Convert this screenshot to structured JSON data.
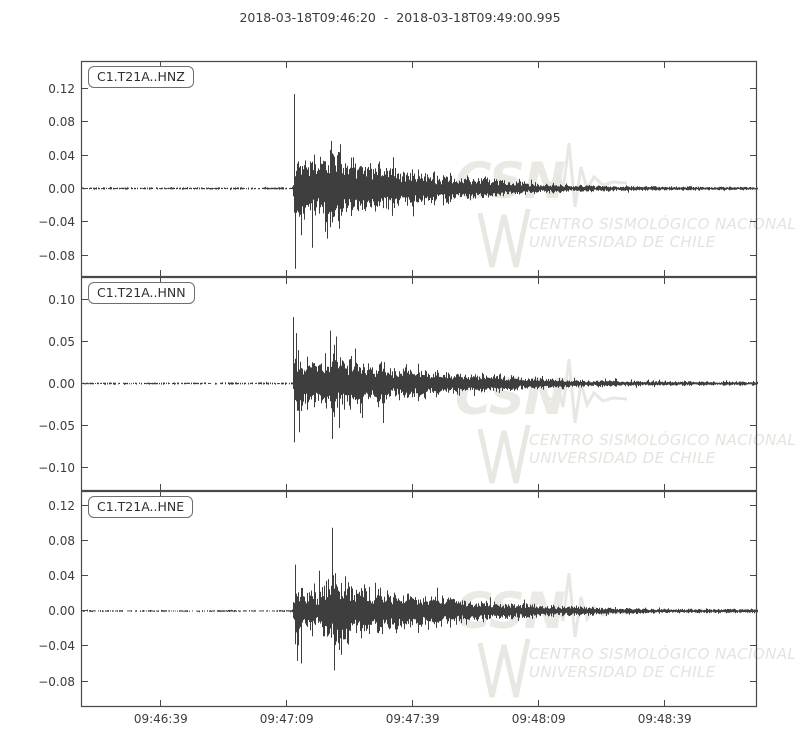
{
  "figure": {
    "background": "#ffffff",
    "frame_color": "#494949",
    "text_color": "#3c3c3c",
    "trace_color": "#3e3e3e",
    "watermark_color": "#e8e7e2"
  },
  "watermark": {
    "acronym": "CSN",
    "line1": "CENTRO SISMOLÓGICO NACIONAL",
    "line2": "UNIVERSIDAD DE CHILE"
  },
  "chart_data": {
    "type": "line",
    "title": "2018-03-18T09:46:20  -  2018-03-18T09:49:00.995",
    "x_start_label": "2018-03-18T09:46:20",
    "x_end_label": "2018-03-18T09:49:00.995",
    "duration_s": 160.995,
    "grid": false,
    "xticks": [
      {
        "t": 19,
        "label": "09:46:39"
      },
      {
        "t": 49,
        "label": "09:47:09"
      },
      {
        "t": 79,
        "label": "09:47:39"
      },
      {
        "t": 109,
        "label": "09:48:09"
      },
      {
        "t": 139,
        "label": "09:48:39"
      }
    ],
    "panels": [
      {
        "label": "C1.T21A..HNZ",
        "yticks": [
          0.12,
          0.08,
          0.04,
          0.0,
          -0.04,
          -0.08
        ],
        "ylim": [
          -0.106,
          0.1527
        ],
        "seed": 101,
        "envelope": [
          [
            0,
            0.0015
          ],
          [
            50.2,
            0.0015
          ],
          [
            50.5,
            0.01
          ],
          [
            50.9,
            0.048
          ],
          [
            51.5,
            0.05
          ],
          [
            52.5,
            0.044
          ],
          [
            54,
            0.038
          ],
          [
            55.5,
            0.036
          ],
          [
            57,
            0.042
          ],
          [
            59.5,
            0.05
          ],
          [
            61,
            0.048
          ],
          [
            63,
            0.042
          ],
          [
            66,
            0.038
          ],
          [
            70,
            0.033
          ],
          [
            75,
            0.028
          ],
          [
            80,
            0.024
          ],
          [
            85,
            0.02
          ],
          [
            90,
            0.016
          ],
          [
            95,
            0.013
          ],
          [
            100,
            0.011
          ],
          [
            105,
            0.009
          ],
          [
            110,
            0.007
          ],
          [
            115,
            0.0055
          ],
          [
            120,
            0.0045
          ],
          [
            125,
            0.0038
          ],
          [
            130,
            0.0032
          ],
          [
            140,
            0.0028
          ],
          [
            150,
            0.0025
          ],
          [
            161,
            0.0025
          ]
        ],
        "spikes_up": [
          [
            50.85,
            0.113
          ],
          [
            59.6,
            0.057
          ],
          [
            61.8,
            0.053
          ]
        ],
        "spikes_down": [
          [
            51.05,
            -0.096
          ],
          [
            52.4,
            -0.056
          ],
          [
            55.2,
            -0.071
          ],
          [
            58.6,
            -0.06
          ]
        ]
      },
      {
        "label": "C1.T21A..HNN",
        "yticks": [
          0.1,
          0.05,
          0.0,
          -0.05,
          -0.1
        ],
        "ylim": [
          -0.128,
          0.1268
        ],
        "seed": 202,
        "envelope": [
          [
            0,
            0.0015
          ],
          [
            50.2,
            0.0015
          ],
          [
            50.5,
            0.01
          ],
          [
            50.8,
            0.045
          ],
          [
            51.5,
            0.042
          ],
          [
            53,
            0.038
          ],
          [
            55,
            0.032
          ],
          [
            56.5,
            0.03
          ],
          [
            58,
            0.04
          ],
          [
            59.5,
            0.05
          ],
          [
            61,
            0.048
          ],
          [
            62.5,
            0.043
          ],
          [
            64,
            0.038
          ],
          [
            67,
            0.034
          ],
          [
            70,
            0.031
          ],
          [
            75,
            0.027
          ],
          [
            80,
            0.023
          ],
          [
            85,
            0.019
          ],
          [
            90,
            0.016
          ],
          [
            95,
            0.013
          ],
          [
            100,
            0.011
          ],
          [
            105,
            0.009
          ],
          [
            110,
            0.0075
          ],
          [
            115,
            0.006
          ],
          [
            120,
            0.005
          ],
          [
            130,
            0.004
          ],
          [
            140,
            0.0035
          ],
          [
            150,
            0.003
          ],
          [
            161,
            0.003
          ]
        ],
        "spikes_up": [
          [
            50.7,
            0.079
          ],
          [
            51.3,
            0.06
          ],
          [
            59.4,
            0.063
          ],
          [
            60.9,
            0.056
          ]
        ],
        "spikes_down": [
          [
            50.95,
            -0.07
          ],
          [
            52.1,
            -0.058
          ],
          [
            59.9,
            -0.066
          ],
          [
            61.6,
            -0.053
          ],
          [
            72.0,
            -0.047
          ]
        ]
      },
      {
        "label": "C1.T21A..HNE",
        "yticks": [
          0.12,
          0.08,
          0.04,
          0.0,
          -0.04,
          -0.08
        ],
        "ylim": [
          -0.1097,
          0.1371
        ],
        "seed": 303,
        "envelope": [
          [
            0,
            0.0012
          ],
          [
            50.2,
            0.0012
          ],
          [
            50.5,
            0.01
          ],
          [
            50.9,
            0.04
          ],
          [
            51.8,
            0.038
          ],
          [
            53,
            0.033
          ],
          [
            55,
            0.03
          ],
          [
            56.5,
            0.033
          ],
          [
            58.5,
            0.045
          ],
          [
            59.8,
            0.05
          ],
          [
            61,
            0.046
          ],
          [
            63,
            0.041
          ],
          [
            65,
            0.037
          ],
          [
            68,
            0.033
          ],
          [
            72,
            0.029
          ],
          [
            76,
            0.026
          ],
          [
            80,
            0.023
          ],
          [
            85,
            0.02
          ],
          [
            90,
            0.017
          ],
          [
            95,
            0.014
          ],
          [
            100,
            0.012
          ],
          [
            105,
            0.01
          ],
          [
            110,
            0.008
          ],
          [
            115,
            0.0065
          ],
          [
            120,
            0.0055
          ],
          [
            125,
            0.0045
          ],
          [
            130,
            0.0038
          ],
          [
            140,
            0.0032
          ],
          [
            150,
            0.0028
          ],
          [
            161,
            0.0028
          ]
        ],
        "spikes_up": [
          [
            51.0,
            0.053
          ],
          [
            56.9,
            0.046
          ],
          [
            59.95,
            0.095
          ]
        ],
        "spikes_down": [
          [
            51.5,
            -0.057
          ],
          [
            52.4,
            -0.06
          ],
          [
            60.35,
            -0.068
          ],
          [
            62.1,
            -0.05
          ]
        ]
      }
    ]
  }
}
